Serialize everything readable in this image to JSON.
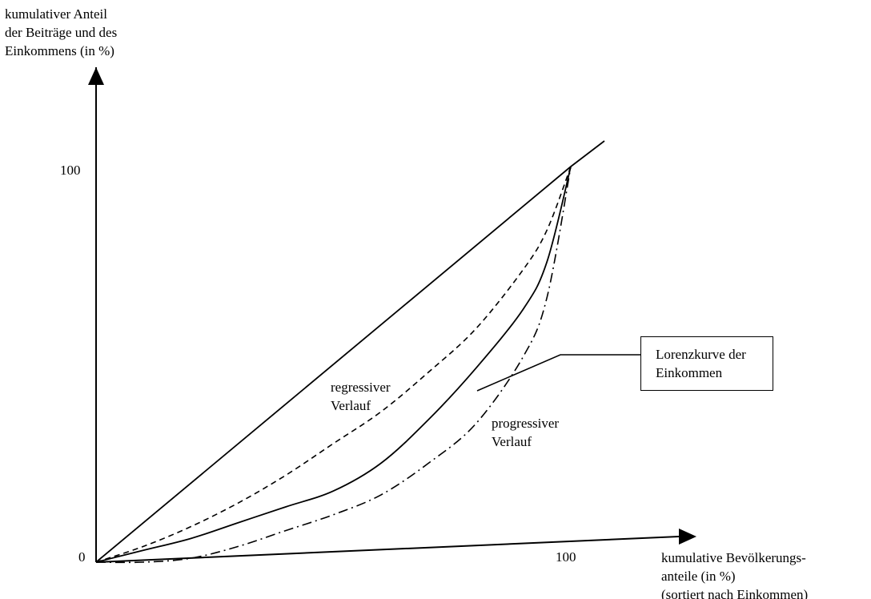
{
  "y_axis_title": [
    "kumulativer Anteil",
    "der Beiträge und des",
    "Einkommens (in %)"
  ],
  "x_axis_title": [
    "kumulative Bevölkerungs-",
    "anteile (in %)",
    "(sortiert nach Einkommen)"
  ],
  "origin_label": "0",
  "y_tick_100": "100",
  "x_tick_100": "100",
  "curve_labels": {
    "regressive": [
      "regressiver",
      "Verlauf"
    ],
    "progressive": [
      "progressiver",
      "Verlauf"
    ],
    "lorenz": [
      "Lorenzkurve der",
      "Einkommen"
    ]
  },
  "chart_data": {
    "type": "line",
    "xlim": [
      0,
      100
    ],
    "ylim": [
      0,
      100
    ],
    "series": [
      {
        "style": "solid",
        "x": [
          0,
          100
        ],
        "y": [
          0,
          100
        ]
      },
      {
        "name": "regressiver Verlauf",
        "style": "dashed",
        "x": [
          0,
          10,
          20,
          30,
          40,
          50,
          60,
          70,
          80,
          90,
          95,
          100
        ],
        "y": [
          0,
          4,
          9,
          15,
          22,
          30,
          38,
          48,
          59,
          74,
          84,
          100
        ]
      },
      {
        "name": "Lorenzkurve der Einkommen",
        "style": "solid",
        "x": [
          0,
          10,
          20,
          30,
          40,
          50,
          60,
          70,
          80,
          90,
          95,
          100
        ],
        "y": [
          0,
          3,
          6,
          10,
          14,
          18,
          25,
          36,
          49,
          64,
          76,
          100
        ]
      },
      {
        "name": "progressiver Verlauf",
        "style": "dashdot",
        "x": [
          0,
          10,
          20,
          30,
          40,
          50,
          60,
          70,
          80,
          90,
          95,
          100
        ],
        "y": [
          0,
          0,
          1,
          4,
          8,
          12,
          17,
          25,
          35,
          52,
          67,
          100
        ]
      }
    ]
  }
}
